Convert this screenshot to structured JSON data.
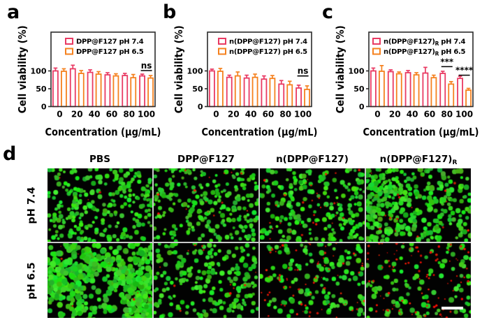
{
  "panels": {
    "a": {
      "label": "a"
    },
    "b": {
      "label": "b"
    },
    "c": {
      "label": "c"
    },
    "d": {
      "label": "d",
      "col_headers": [
        {
          "text": "PBS",
          "sub": ""
        },
        {
          "text": "DPP@F127",
          "sub": ""
        },
        {
          "text": "n(DPP@F127)",
          "sub": ""
        },
        {
          "text": "n(DPP@F127)",
          "sub": "R"
        }
      ],
      "row_labels": [
        "pH 7.4",
        "pH 6.5"
      ],
      "stain_colors": {
        "live": "#22cc22",
        "dead": "#ee2200"
      },
      "tiles": [
        {
          "row": "pH 7.4",
          "col": "PBS",
          "green_cells": 260,
          "red_cells": 3,
          "rmin": 2.0,
          "rmax": 3.6,
          "cluster": 0,
          "left_bias": 0,
          "scalebar": 0,
          "seed": 11
        },
        {
          "row": "pH 7.4",
          "col": "DPP@F127",
          "green_cells": 235,
          "red_cells": 14,
          "rmin": 2.0,
          "rmax": 3.6,
          "cluster": 0,
          "left_bias": 0,
          "scalebar": 0,
          "seed": 22
        },
        {
          "row": "pH 7.4",
          "col": "n(DPP@F127)",
          "green_cells": 215,
          "red_cells": 30,
          "rmin": 2.0,
          "rmax": 3.8,
          "cluster": 0,
          "left_bias": 0,
          "scalebar": 0,
          "seed": 33
        },
        {
          "row": "pH 7.4",
          "col": "n(DPP@F127)R",
          "green_cells": 340,
          "red_cells": 16,
          "rmin": 2.2,
          "rmax": 4.0,
          "cluster": 0,
          "left_bias": 1,
          "scalebar": 0,
          "seed": 44
        },
        {
          "row": "pH 6.5",
          "col": "PBS",
          "green_cells": 620,
          "red_cells": 7,
          "rmin": 2.6,
          "rmax": 4.6,
          "cluster": 1,
          "left_bias": 0,
          "scalebar": 0,
          "seed": 55
        },
        {
          "row": "pH 6.5",
          "col": "DPP@F127",
          "green_cells": 205,
          "red_cells": 12,
          "rmin": 2.0,
          "rmax": 3.8,
          "cluster": 0,
          "left_bias": 0,
          "scalebar": 0,
          "seed": 66
        },
        {
          "row": "pH 6.5",
          "col": "n(DPP@F127)",
          "green_cells": 130,
          "red_cells": 70,
          "rmin": 2.2,
          "rmax": 4.0,
          "cluster": 0,
          "left_bias": 0,
          "scalebar": 0,
          "seed": 77
        },
        {
          "row": "pH 6.5",
          "col": "n(DPP@F127)R",
          "green_cells": 100,
          "red_cells": 90,
          "rmin": 2.2,
          "rmax": 4.0,
          "cluster": 0,
          "left_bias": 0,
          "scalebar": 1,
          "seed": 88
        }
      ]
    }
  },
  "chart_data": [
    {
      "panel": "a",
      "type": "bar",
      "title": "",
      "categories": [
        "0",
        "20",
        "40",
        "60",
        "80",
        "100"
      ],
      "xlabel": "Concentration (μg/mL)",
      "ylabel": "Cell viability (%)",
      "y_ticks": [
        0,
        50,
        100
      ],
      "ylim": [
        0,
        205
      ],
      "grid": false,
      "legend_position": "top-left-inside",
      "series": [
        {
          "name_pre": "DPP@F127",
          "name_sub": "",
          "name_post": " pH 7.4",
          "color": "#e93a63",
          "values": [
            100,
            106,
            96,
            89,
            87,
            86
          ],
          "errors": [
            8,
            10,
            7,
            6,
            6,
            5
          ]
        },
        {
          "name_pre": "DPP@F127",
          "name_sub": "",
          "name_post": " pH 6.5",
          "color": "#f5811e",
          "values": [
            99,
            93,
            91,
            86,
            81,
            80
          ],
          "errors": [
            7,
            8,
            7,
            6,
            9,
            7
          ]
        }
      ],
      "significance": [
        {
          "group": 5,
          "label": "ns",
          "line_y": 101
        }
      ]
    },
    {
      "panel": "b",
      "type": "bar",
      "title": "",
      "categories": [
        "0",
        "20",
        "40",
        "60",
        "80",
        "100"
      ],
      "xlabel": "Concentration (μg/mL)",
      "ylabel": "Cell viability (%)",
      "y_ticks": [
        0,
        50,
        100
      ],
      "ylim": [
        0,
        205
      ],
      "grid": false,
      "legend_position": "top-left-inside",
      "series": [
        {
          "name_pre": "n(DPP@F127)",
          "name_sub": "",
          "name_post": " pH 7.4",
          "color": "#e93a63",
          "values": [
            100,
            82,
            80,
            77,
            63,
            52
          ],
          "errors": [
            5,
            6,
            8,
            9,
            10,
            8
          ]
        },
        {
          "name_pre": "n(DPP@F127)",
          "name_sub": "",
          "name_post": " pH 6.5",
          "color": "#f5811e",
          "values": [
            99,
            86,
            82,
            79,
            61,
            48
          ],
          "errors": [
            8,
            11,
            9,
            8,
            10,
            10
          ]
        }
      ],
      "significance": [
        {
          "group": 5,
          "label": "ns",
          "line_y": 86
        }
      ]
    },
    {
      "panel": "c",
      "type": "bar",
      "title": "",
      "categories": [
        "0",
        "20",
        "40",
        "60",
        "80",
        "100"
      ],
      "xlabel": "Concentration (μg/mL)",
      "ylabel": "Cell viability (%)",
      "y_ticks": [
        0,
        50,
        100
      ],
      "ylim": [
        0,
        205
      ],
      "grid": false,
      "legend_position": "top-left-inside",
      "series": [
        {
          "name_pre": "n(DPP@F127)",
          "name_sub": "R",
          "name_post": " pH 7.4",
          "color": "#e93a63",
          "values": [
            100,
            98,
            95,
            94,
            93,
            79
          ],
          "errors": [
            8,
            5,
            6,
            16,
            6,
            6
          ]
        },
        {
          "name_pre": "n(DPP@F127)",
          "name_sub": "R",
          "name_post": " pH 6.5",
          "color": "#f5811e",
          "values": [
            99,
            92,
            89,
            81,
            63,
            46
          ],
          "errors": [
            16,
            5,
            6,
            7,
            7,
            5
          ]
        }
      ],
      "significance": [
        {
          "group": 4,
          "label": "***",
          "line_y": 112
        },
        {
          "group": 5,
          "label": "****",
          "line_y": 88
        }
      ]
    }
  ]
}
